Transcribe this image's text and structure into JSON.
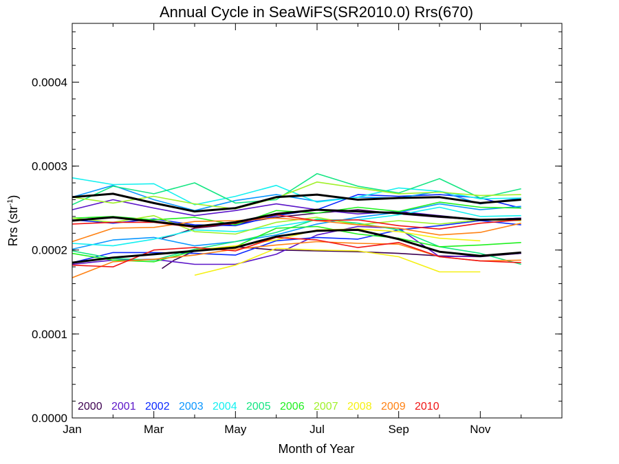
{
  "chart_data": {
    "type": "line",
    "title": "Annual Cycle in SeaWiFS(SR2010.0) Rrs(670)",
    "xlabel": "Month of Year",
    "ylabel": "Rrs (str",
    "ylabel_sup": "-1",
    "ylabel_end": ")",
    "xlim": [
      1,
      13
    ],
    "ylim": [
      0.0,
      0.00047
    ],
    "x_ticks": [
      {
        "value": 1,
        "label": "Jan"
      },
      {
        "value": 3,
        "label": "Mar"
      },
      {
        "value": 5,
        "label": "May"
      },
      {
        "value": 7,
        "label": "Jul"
      },
      {
        "value": 9,
        "label": "Sep"
      },
      {
        "value": 11,
        "label": "Nov"
      }
    ],
    "y_ticks": [
      {
        "value": 0.0,
        "label": "0.0000"
      },
      {
        "value": 0.0001,
        "label": "0.0001"
      },
      {
        "value": 0.0002,
        "label": "0.0002"
      },
      {
        "value": 0.0003,
        "label": "0.0003"
      },
      {
        "value": 0.0004,
        "label": "0.0004"
      }
    ],
    "grid": false,
    "legend_position": "bottom-left",
    "series": [
      {
        "name": "2000",
        "color": "#3c0050",
        "x": [
          3.2,
          3.5,
          4,
          5,
          6,
          7,
          8,
          9,
          10,
          11,
          12
        ],
        "lines": [
          [
            0.000178,
            0.000188,
            0.000199,
            0.000204,
            0.0002,
            0.000199,
            0.000198,
            0.000196,
            0.000193,
            0.000192,
            0.000196
          ],
          [
            0.000214,
            0.000218,
            0.000226,
            0.000231,
            0.000239,
            0.000244,
            0.000248,
            0.000243,
            0.000239,
            0.000236,
            0.000238
          ]
        ]
      },
      {
        "name": "2001",
        "color": "#5a14c8",
        "x": [
          1,
          2,
          3,
          4,
          5,
          6,
          7,
          8,
          9,
          10,
          11,
          12
        ],
        "lines": [
          [
            0.000183,
            0.000188,
            0.000189,
            0.000183,
            0.000183,
            0.000195,
            0.000218,
            0.000228,
            0.000226,
            0.000192,
            0.000193,
            0.000196
          ],
          [
            0.000248,
            0.00026,
            0.00025,
            0.000241,
            0.000247,
            0.000255,
            0.000248,
            0.000243,
            0.000246,
            0.000241,
            0.000236,
            0.000238
          ]
        ]
      },
      {
        "name": "2002",
        "color": "#0a28ff",
        "x": [
          1,
          2,
          3,
          4,
          5,
          6,
          7,
          8,
          9,
          10,
          11,
          12
        ],
        "lines": [
          [
            0.000185,
            0.000197,
            0.000197,
            0.000196,
            0.000194,
            0.000211,
            0.000215,
            0.000213,
            0.000224,
            0.000229,
            0.000235,
            0.00023
          ],
          [
            0.000236,
            0.000232,
            0.000237,
            0.00023,
            0.000229,
            0.000241,
            0.000248,
            0.000266,
            0.000264,
            0.000266,
            0.000262,
            0.00025
          ]
        ]
      },
      {
        "name": "2003",
        "color": "#0a96ff",
        "x": [
          1,
          2,
          3,
          4,
          5,
          6,
          7,
          8,
          9,
          10,
          11,
          12
        ],
        "lines": [
          [
            0.000201,
            0.000212,
            0.000215,
            0.000205,
            0.00021,
            0.000218,
            0.000231,
            0.000239,
            0.000245,
            0.000255,
            0.000248,
            0.000252
          ],
          [
            0.000263,
            0.000277,
            0.00026,
            0.000247,
            0.000259,
            0.000266,
            0.000258,
            0.000263,
            0.000262,
            0.00027,
            0.000255,
            0.000262
          ]
        ]
      },
      {
        "name": "2004",
        "color": "#14f0f0",
        "x": [
          1,
          2,
          3,
          4,
          5,
          6,
          7,
          8,
          9,
          10,
          11,
          12
        ],
        "lines": [
          [
            0.000286,
            0.000278,
            0.000279,
            0.000254,
            0.000264,
            0.000277,
            0.000257,
            0.000263,
            0.000274,
            0.00027,
            0.000261,
            0.000262
          ],
          [
            0.000208,
            0.000205,
            0.000213,
            0.000224,
            0.000222,
            0.000228,
            0.000236,
            0.000236,
            0.000242,
            0.000251,
            0.00024,
            0.000241
          ]
        ]
      },
      {
        "name": "2005",
        "color": "#14e682",
        "x": [
          1,
          2,
          3,
          4,
          5,
          6,
          7,
          8,
          9,
          10,
          11,
          12
        ],
        "lines": [
          [
            0.000254,
            0.000276,
            0.000267,
            0.00028,
            0.000256,
            0.00026,
            0.000291,
            0.000276,
            0.000268,
            0.000285,
            0.000262,
            0.000273
          ],
          [
            0.000199,
            0.00019,
            0.000188,
            0.000201,
            0.00021,
            0.000221,
            0.000237,
            0.000232,
            0.000224,
            0.000204,
            0.000196,
            0.000183
          ]
        ]
      },
      {
        "name": "2006",
        "color": "#1ef01e",
        "x": [
          1,
          2,
          3,
          4,
          5,
          6,
          7,
          8,
          9,
          10,
          11,
          12
        ],
        "lines": [
          [
            0.000238,
            0.00024,
            0.000236,
            0.000239,
            0.00023,
            0.000247,
            0.000244,
            0.000251,
            0.000246,
            0.000257,
            0.000251,
            0.00025
          ],
          [
            0.000196,
            0.000188,
            0.000186,
            0.000199,
            0.000204,
            0.000226,
            0.000228,
            0.000219,
            0.000214,
            0.000204,
            0.000206,
            0.000209
          ]
        ]
      },
      {
        "name": "2007",
        "color": "#a0f028",
        "x": [
          1,
          2,
          3,
          4,
          5,
          6,
          7,
          8,
          9,
          10,
          11,
          12
        ],
        "lines": [
          [
            0.000263,
            0.000256,
            0.000264,
            0.000255,
            0.000249,
            0.000262,
            0.000281,
            0.000274,
            0.000267,
            0.000269,
            0.000265,
            0.000266
          ],
          [
            0.000238,
            0.000233,
            0.000241,
            0.000222,
            0.000219,
            0.000233,
            0.000239,
            0.00023,
            0.000235,
            0.000231,
            0.000236,
            0.000235
          ]
        ]
      },
      {
        "name": "2008",
        "color": "#f5f014",
        "x": [
          4,
          5,
          6,
          7,
          8,
          9,
          10,
          11
        ],
        "lines": [
          [
            0.00017,
            0.000182,
            0.000202,
            0.0002,
            0.000199,
            0.000192,
            0.000174,
            0.000174
          ],
          [
            0.0002,
            0.000205,
            0.000212,
            0.000224,
            0.000225,
            0.000222,
            0.000214,
            0.000211
          ]
        ]
      },
      {
        "name": "2009",
        "color": "#ff8214",
        "x": [
          1,
          2,
          3,
          4,
          5,
          6,
          7,
          8,
          9,
          10,
          11,
          12
        ],
        "lines": [
          [
            0.000167,
            0.000186,
            0.000189,
            0.000194,
            0.000201,
            0.000206,
            0.00021,
            0.000208,
            0.000207,
            0.000192,
            0.000187,
            0.000188
          ],
          [
            0.00021,
            0.000226,
            0.000227,
            0.000234,
            0.000235,
            0.000238,
            0.000235,
            0.00023,
            0.000226,
            0.000218,
            0.000221,
            0.000232
          ]
        ]
      },
      {
        "name": "2010",
        "color": "#f01414",
        "x": [
          1,
          2,
          3,
          4,
          5,
          6,
          7,
          8,
          9,
          10,
          11,
          12
        ],
        "lines": [
          [
            0.000182,
            0.00018,
            0.0002,
            0.000203,
            0.000199,
            0.000215,
            0.000212,
            0.000203,
            0.000209,
            0.000192,
            0.000187,
            0.000185
          ],
          [
            0.000231,
            0.000233,
            0.000233,
            0.000227,
            0.000232,
            0.000242,
            0.000235,
            0.000236,
            0.000229,
            0.000225,
            0.000232,
            0.000236
          ]
        ]
      }
    ],
    "climatology": {
      "color": "#000000",
      "x": [
        1,
        2,
        3,
        4,
        5,
        6,
        7,
        8,
        9,
        10,
        11,
        12
      ],
      "lines": [
        [
          0.000263,
          0.000267,
          0.000256,
          0.000246,
          0.00025,
          0.000263,
          0.000266,
          0.00026,
          0.000262,
          0.000263,
          0.000256,
          0.00026
        ],
        [
          0.000235,
          0.000239,
          0.000234,
          0.000228,
          0.000233,
          0.000243,
          0.000248,
          0.000246,
          0.000244,
          0.00024,
          0.000236,
          0.000237
        ],
        [
          0.000185,
          0.000191,
          0.000195,
          0.000199,
          0.000203,
          0.000216,
          0.000223,
          0.000224,
          0.000213,
          0.000198,
          0.000193,
          0.000197
        ]
      ]
    }
  }
}
